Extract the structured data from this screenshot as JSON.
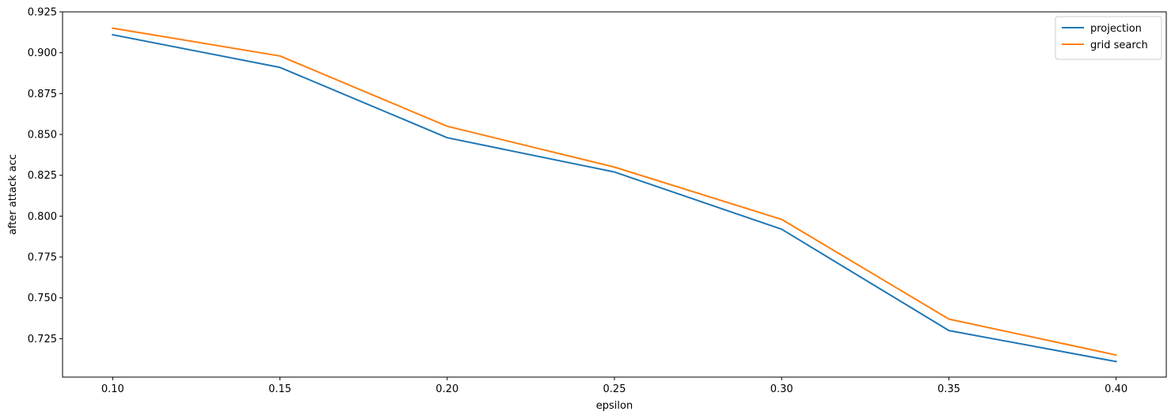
{
  "chart_data": {
    "type": "line",
    "title": "",
    "xlabel": "epsilon",
    "ylabel": "after attack acc",
    "x": [
      0.1,
      0.15,
      0.2,
      0.25,
      0.3,
      0.35,
      0.4
    ],
    "x_tick_labels": [
      "0.10",
      "0.15",
      "0.20",
      "0.25",
      "0.30",
      "0.35",
      "0.40"
    ],
    "y_ticks": [
      0.725,
      0.75,
      0.775,
      0.8,
      0.825,
      0.85,
      0.875,
      0.9,
      0.925
    ],
    "y_tick_labels": [
      "0.725",
      "0.750",
      "0.775",
      "0.800",
      "0.825",
      "0.850",
      "0.875",
      "0.900",
      "0.925"
    ],
    "xlim": [
      0.085,
      0.415
    ],
    "ylim": [
      0.7015,
      0.925
    ],
    "grid": false,
    "legend_position": "top-right",
    "series": [
      {
        "name": "projection",
        "color": "#1f77b4",
        "values": [
          0.911,
          0.891,
          0.848,
          0.827,
          0.792,
          0.73,
          0.711
        ]
      },
      {
        "name": "grid search",
        "color": "#ff7f0e",
        "values": [
          0.915,
          0.898,
          0.855,
          0.83,
          0.798,
          0.737,
          0.715
        ]
      }
    ]
  }
}
